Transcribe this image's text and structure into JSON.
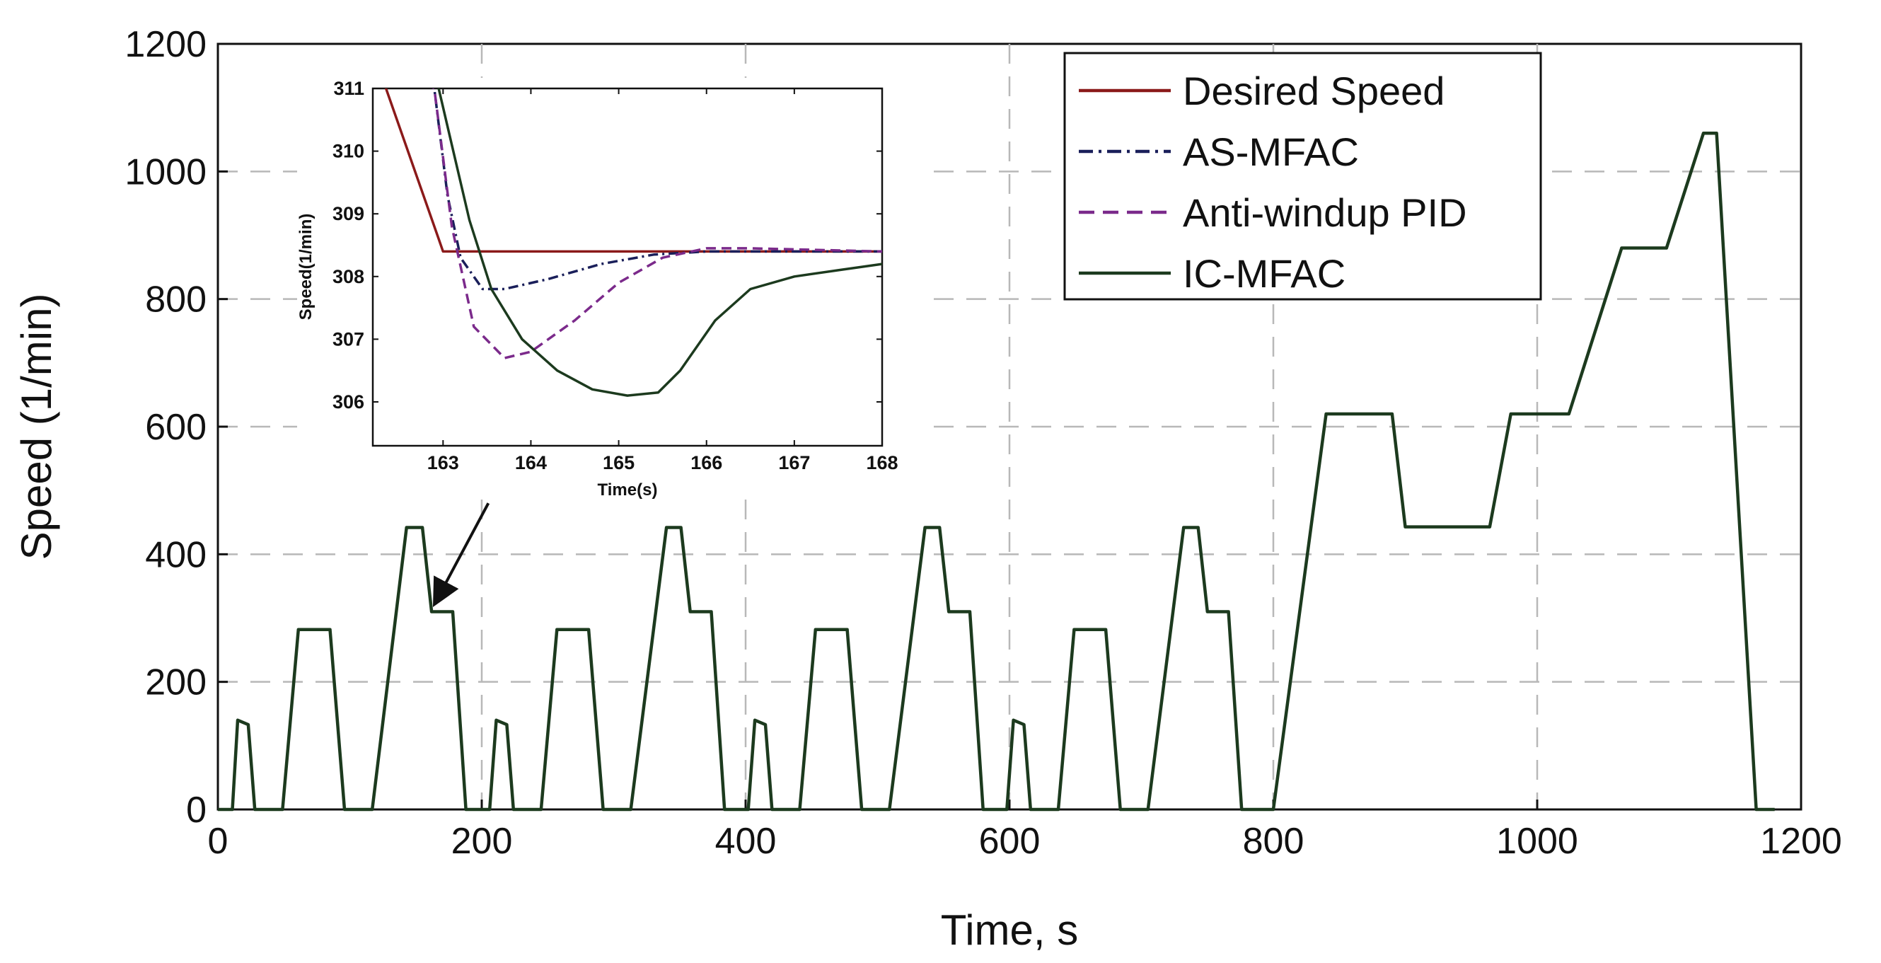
{
  "chart_data": {
    "main": {
      "type": "line",
      "xlabel": "Time, s",
      "ylabel": "Speed (1/min)",
      "xlim": [
        0,
        1200
      ],
      "ylim": [
        0,
        1200
      ],
      "xticks": [
        0,
        200,
        400,
        600,
        800,
        1000,
        1200
      ],
      "yticks": [
        0,
        200,
        400,
        600,
        800,
        1000,
        1200
      ],
      "grid": true,
      "series": [
        {
          "name": "IC-MFAC",
          "color": "#1c3a1e",
          "points": [
            [
              0,
              0
            ],
            [
              11,
              0
            ],
            [
              15,
              140
            ],
            [
              23,
              133
            ],
            [
              28,
              0
            ],
            [
              49,
              0
            ],
            [
              61,
              282
            ],
            [
              85,
              282
            ],
            [
              96,
              0
            ],
            [
              117,
              0
            ],
            [
              143,
              442
            ],
            [
              155,
              442
            ],
            [
              162,
              310
            ],
            [
              178,
              310
            ],
            [
              188,
              0
            ],
            [
              206,
              0
            ],
            [
              211,
              140
            ],
            [
              219,
              133
            ],
            [
              224,
              0
            ],
            [
              245,
              0
            ],
            [
              257,
              282
            ],
            [
              281,
              282
            ],
            [
              292,
              0
            ],
            [
              313,
              0
            ],
            [
              340,
              442
            ],
            [
              351,
              442
            ],
            [
              358,
              310
            ],
            [
              374,
              310
            ],
            [
              384,
              0
            ],
            [
              402,
              0
            ],
            [
              407,
              140
            ],
            [
              415,
              133
            ],
            [
              420,
              0
            ],
            [
              441,
              0
            ],
            [
              453,
              282
            ],
            [
              477,
              282
            ],
            [
              488,
              0
            ],
            [
              509,
              0
            ],
            [
              536,
              442
            ],
            [
              547,
              442
            ],
            [
              554,
              310
            ],
            [
              570,
              310
            ],
            [
              580,
              0
            ],
            [
              598,
              0
            ],
            [
              603,
              140
            ],
            [
              611,
              133
            ],
            [
              616,
              0
            ],
            [
              637,
              0
            ],
            [
              649,
              282
            ],
            [
              673,
              282
            ],
            [
              684,
              0
            ],
            [
              705,
              0
            ],
            [
              732,
              442
            ],
            [
              743,
              442
            ],
            [
              750,
              310
            ],
            [
              766,
              310
            ],
            [
              776,
              0
            ],
            [
              800,
              0
            ],
            [
              840,
              620
            ],
            [
              890,
              620
            ],
            [
              900,
              443
            ],
            [
              964,
              443
            ],
            [
              980,
              620
            ],
            [
              1024,
              620
            ],
            [
              1064,
              880
            ],
            [
              1098,
              880
            ],
            [
              1126,
              1060
            ],
            [
              1136,
              1060
            ],
            [
              1166,
              0
            ],
            [
              1180,
              0
            ]
          ]
        }
      ],
      "legend": {
        "position": "top-right",
        "entries": [
          {
            "label": "Desired Speed",
            "style": "solid",
            "color": "#8b1a1a"
          },
          {
            "label": "AS-MFAC",
            "style": "dashdot",
            "color": "#1a1f5a"
          },
          {
            "label": "Anti-windup PID",
            "style": "dashed",
            "color": "#7b2a8b"
          },
          {
            "label": "IC-MFAC",
            "style": "solid",
            "color": "#1c3a1e"
          }
        ]
      },
      "annotation": {
        "type": "arrow",
        "from": [
          205,
          480
        ],
        "to": [
          165,
          325
        ]
      }
    },
    "inset": {
      "type": "line",
      "xlabel": "Time(s)",
      "ylabel": "Speed(1/min)",
      "xlim": [
        162.2,
        168
      ],
      "ylim": [
        305.3,
        311
      ],
      "xticks": [
        163,
        164,
        165,
        166,
        167,
        168
      ],
      "xticklabels": [
        "163",
        "164",
        "165",
        "166",
        "167",
        "168"
      ],
      "yticks": [
        306,
        307,
        308,
        309,
        310,
        311
      ],
      "series": [
        {
          "name": "Desired Speed",
          "color": "#8b1a1a",
          "style": "solid",
          "points": [
            [
              162.2,
              311.6
            ],
            [
              162.95,
              308.6
            ],
            [
              163.0,
              308.4
            ],
            [
              168,
              308.4
            ]
          ]
        },
        {
          "name": "AS-MFAC",
          "color": "#1a1f5a",
          "style": "dashdot",
          "points": [
            [
              162.2,
              311.6
            ],
            [
              162.9,
              311.0
            ],
            [
              163.05,
              309.3
            ],
            [
              163.2,
              308.3
            ],
            [
              163.45,
              307.8
            ],
            [
              163.7,
              307.8
            ],
            [
              164.2,
              307.96
            ],
            [
              164.8,
              308.2
            ],
            [
              165.4,
              308.35
            ],
            [
              166,
              308.4
            ],
            [
              168,
              308.4
            ]
          ]
        },
        {
          "name": "Anti-windup PID",
          "color": "#7b2a8b",
          "style": "dashed",
          "points": [
            [
              162.2,
              311.6
            ],
            [
              162.9,
              311.0
            ],
            [
              163.1,
              308.8
            ],
            [
              163.35,
              307.2
            ],
            [
              163.7,
              306.7
            ],
            [
              164.0,
              306.8
            ],
            [
              164.5,
              307.3
            ],
            [
              165.0,
              307.9
            ],
            [
              165.5,
              308.3
            ],
            [
              166,
              308.45
            ],
            [
              166.5,
              308.45
            ],
            [
              168,
              308.4
            ]
          ]
        },
        {
          "name": "IC-MFAC",
          "color": "#1c3a1e",
          "style": "solid",
          "points": [
            [
              162.85,
              311.6
            ],
            [
              163.1,
              310.1
            ],
            [
              163.3,
              308.9
            ],
            [
              163.55,
              307.8
            ],
            [
              163.9,
              307.0
            ],
            [
              164.3,
              306.5
            ],
            [
              164.7,
              306.2
            ],
            [
              165.1,
              306.1
            ],
            [
              165.45,
              306.15
            ],
            [
              165.7,
              306.5
            ],
            [
              166.1,
              307.3
            ],
            [
              166.5,
              307.8
            ],
            [
              167.0,
              308.0
            ],
            [
              167.5,
              308.1
            ],
            [
              168,
              308.2
            ]
          ]
        }
      ]
    }
  }
}
